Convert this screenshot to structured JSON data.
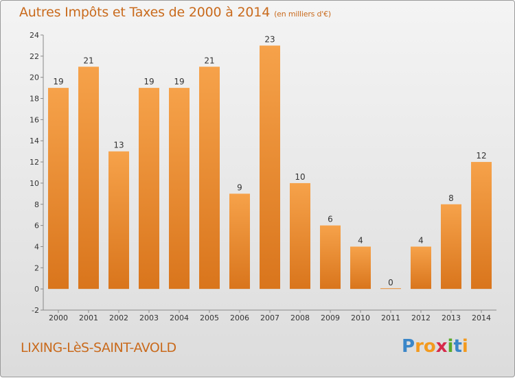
{
  "chart_data": {
    "type": "bar",
    "title": "Autres Impôts et Taxes de 2000 à 2014",
    "unit_label": "(en milliers d'€)",
    "categories": [
      "2000",
      "2001",
      "2002",
      "2003",
      "2004",
      "2005",
      "2006",
      "2007",
      "2008",
      "2009",
      "2010",
      "2011",
      "2012",
      "2013",
      "2014"
    ],
    "values": [
      19,
      21,
      13,
      19,
      19,
      21,
      9,
      23,
      10,
      6,
      4,
      0,
      4,
      8,
      12
    ],
    "ylim": [
      -2,
      24
    ],
    "yticks": [
      -2,
      0,
      2,
      4,
      6,
      8,
      10,
      12,
      14,
      16,
      18,
      20,
      22,
      24
    ],
    "grid": false,
    "xlabel": "",
    "ylabel": "",
    "bar_color_light": "#f6a24a",
    "bar_color_dark": "#d9751c"
  },
  "footer": {
    "commune": "LIXING-LèS-SAINT-AVOLD",
    "logo_letters": [
      {
        "char": "P",
        "color": "#3a86c8"
      },
      {
        "char": "r",
        "color": "#f39a1e"
      },
      {
        "char": "o",
        "color": "#f39a1e"
      },
      {
        "char": "x",
        "color": "#d62a4a"
      },
      {
        "char": "i",
        "color": "#5aaa2a"
      },
      {
        "char": "t",
        "color": "#3a86c8"
      },
      {
        "char": "i",
        "color": "#f39a1e"
      }
    ]
  }
}
